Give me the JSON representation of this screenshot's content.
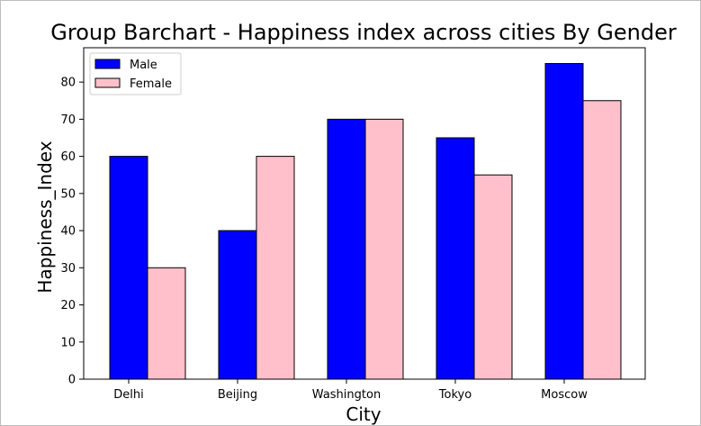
{
  "chart_data": {
    "type": "bar",
    "title": "Group Barchart - Happiness index across cities By Gender",
    "xlabel": "City",
    "ylabel": "Happiness_Index",
    "categories": [
      "Delhi",
      "Beijing",
      "Washington",
      "Tokyo",
      "Moscow"
    ],
    "series": [
      {
        "name": "Male",
        "values": [
          60,
          40,
          70,
          65,
          85
        ],
        "color": "#0000ff"
      },
      {
        "name": "Female",
        "values": [
          30,
          60,
          70,
          55,
          75
        ],
        "color": "#ffc0cb"
      }
    ],
    "ylim": [
      0,
      89.25
    ],
    "yticks": [
      0,
      10,
      20,
      30,
      40,
      50,
      60,
      70,
      80
    ],
    "grid": false,
    "legend_position": "top-left",
    "edge_color": "#000000"
  }
}
